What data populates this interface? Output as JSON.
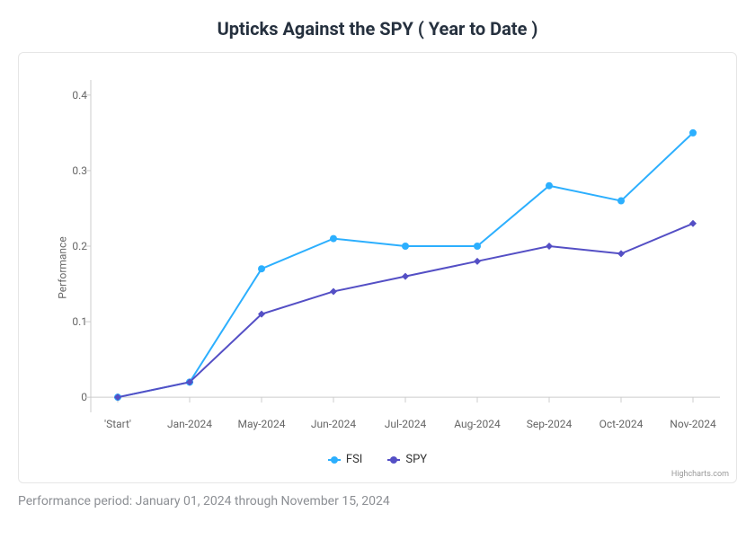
{
  "title": "Upticks Against the SPY ( Year to Date )",
  "chart": {
    "type": "line",
    "background_color": "#ffffff",
    "border_color": "#e6e6e6",
    "title_fontsize": 20,
    "title_color": "#26313f",
    "ylabel": "Performance",
    "label_fontsize": 12,
    "label_color": "#666666",
    "xlim_index": [
      0,
      8
    ],
    "ylim": [
      -0.02,
      0.42
    ],
    "yticks": [
      0,
      0.1,
      0.2,
      0.3,
      0.4
    ],
    "categories": [
      "'Start'",
      "Jan-2024",
      "May-2024",
      "Jun-2024",
      "Jul-2024",
      "Aug-2024",
      "Sep-2024",
      "Oct-2024",
      "Nov-2024"
    ],
    "axis_color": "#cccccc",
    "tick_font_size": 12,
    "tick_color": "#666666",
    "marker_radius": 4,
    "line_width": 2,
    "series": [
      {
        "name": "FSI",
        "color": "#2caffe",
        "marker": "circle",
        "values": [
          0.0,
          0.02,
          0.17,
          0.21,
          0.2,
          0.2,
          0.28,
          0.26,
          0.35
        ]
      },
      {
        "name": "SPY",
        "color": "#544fc5",
        "marker": "diamond",
        "values": [
          0.0,
          0.02,
          0.11,
          0.14,
          0.16,
          0.18,
          0.2,
          0.19,
          0.23
        ]
      }
    ],
    "legend_fontsize": 13,
    "credit": "Highcharts.com",
    "credit_color": "#999999"
  },
  "footnote": "Performance period: January 01, 2024 through November 15, 2024",
  "footnote_color": "#8c8f94",
  "footnote_fontsize": 14
}
